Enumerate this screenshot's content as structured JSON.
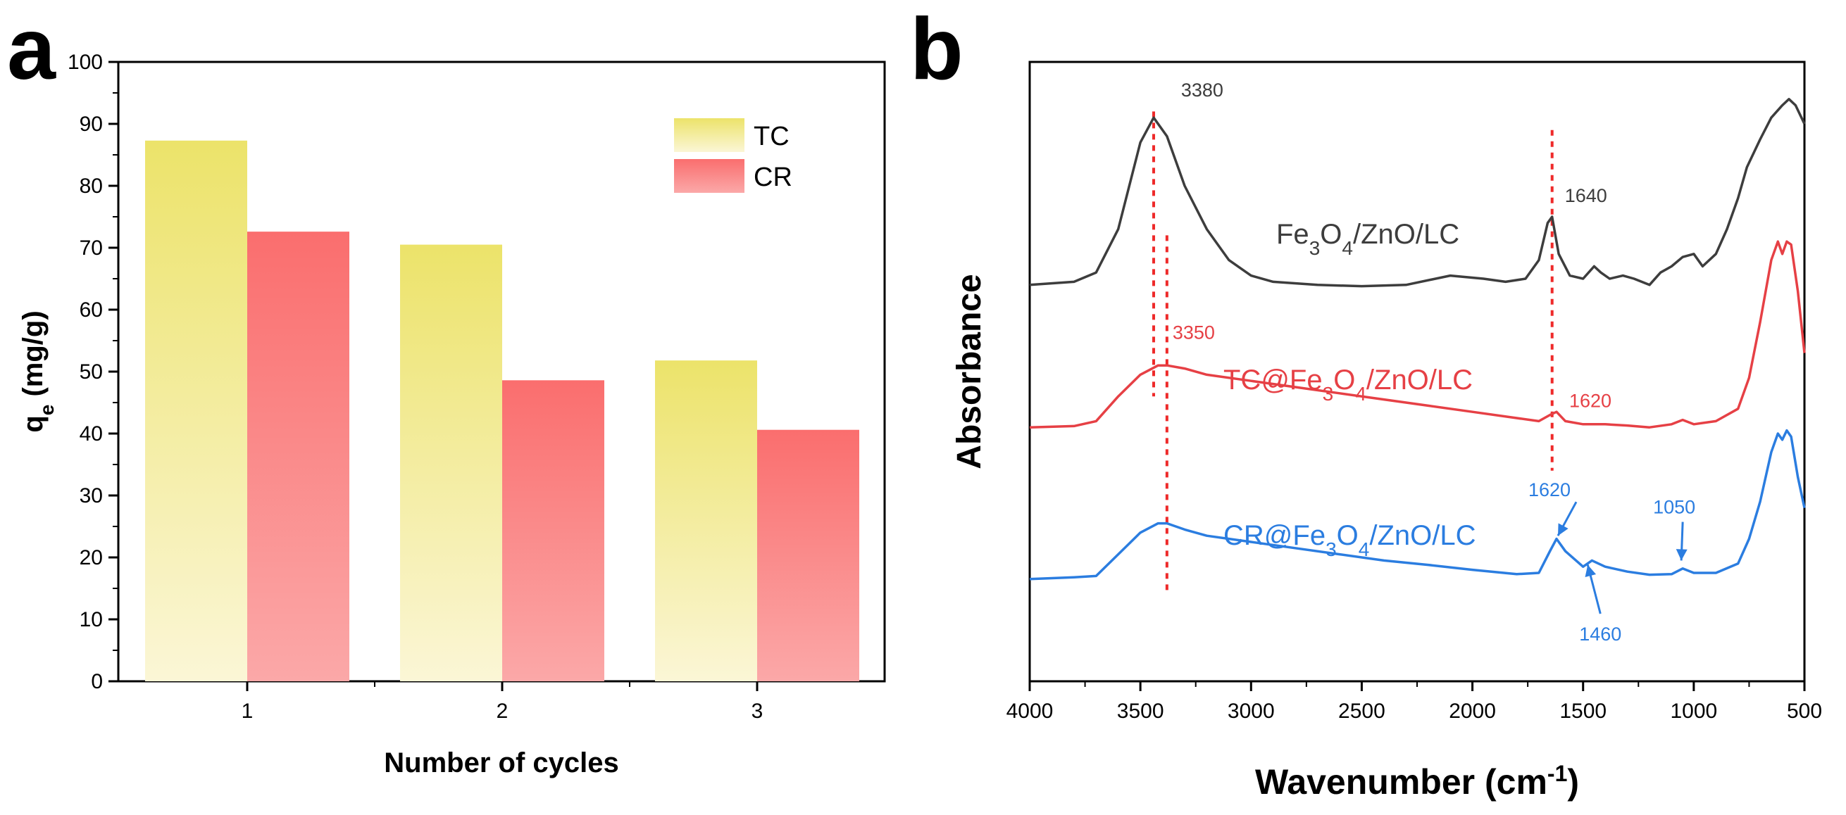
{
  "chart_data": [
    {
      "panel": "a",
      "type": "bar",
      "xlabel": "Number of cycles",
      "ylabel_main": "q",
      "ylabel_sub": "e",
      "ylabel_unit": " (mg/g)",
      "ylim": [
        0,
        100
      ],
      "yticks": [
        0,
        10,
        20,
        30,
        40,
        50,
        60,
        70,
        80,
        90,
        100
      ],
      "categories": [
        "1",
        "2",
        "3"
      ],
      "series": [
        {
          "name": "TC",
          "values": [
            87.3,
            70.5,
            51.8
          ],
          "color_top": "#ece36a",
          "color_bottom": "#fbf6d6"
        },
        {
          "name": "CR",
          "values": [
            72.6,
            48.6,
            40.6
          ],
          "color_top": "#fa6e6e",
          "color_bottom": "#fba8a8"
        }
      ],
      "legend": "top-right"
    },
    {
      "panel": "b",
      "type": "line",
      "xlabel_main": "Wavenumber (cm",
      "xlabel_sup": "-1",
      "xlabel_end": ")",
      "ylabel": "Absorbance",
      "xlim": [
        4000,
        500
      ],
      "xticks": [
        4000,
        3500,
        3000,
        2500,
        2000,
        1500,
        1000,
        500
      ],
      "ylim": [
        0,
        10
      ],
      "series": [
        {
          "name": "Fe3O4/ZnO/LC",
          "label_parts": [
            "Fe",
            "3",
            "O",
            "4",
            "/ZnO/LC"
          ],
          "color": "#3d3d3d",
          "points": [
            [
              4000,
              6.4
            ],
            [
              3800,
              6.45
            ],
            [
              3700,
              6.6
            ],
            [
              3600,
              7.3
            ],
            [
              3500,
              8.7
            ],
            [
              3440,
              9.1
            ],
            [
              3380,
              8.8
            ],
            [
              3300,
              8.0
            ],
            [
              3200,
              7.3
            ],
            [
              3100,
              6.8
            ],
            [
              3000,
              6.55
            ],
            [
              2900,
              6.45
            ],
            [
              2700,
              6.4
            ],
            [
              2500,
              6.38
            ],
            [
              2300,
              6.4
            ],
            [
              2100,
              6.55
            ],
            [
              1950,
              6.5
            ],
            [
              1850,
              6.45
            ],
            [
              1760,
              6.5
            ],
            [
              1700,
              6.8
            ],
            [
              1660,
              7.4
            ],
            [
              1640,
              7.5
            ],
            [
              1610,
              6.9
            ],
            [
              1560,
              6.55
            ],
            [
              1500,
              6.5
            ],
            [
              1450,
              6.7
            ],
            [
              1420,
              6.6
            ],
            [
              1380,
              6.5
            ],
            [
              1320,
              6.55
            ],
            [
              1270,
              6.5
            ],
            [
              1200,
              6.4
            ],
            [
              1150,
              6.6
            ],
            [
              1100,
              6.7
            ],
            [
              1050,
              6.85
            ],
            [
              1000,
              6.9
            ],
            [
              960,
              6.7
            ],
            [
              900,
              6.9
            ],
            [
              850,
              7.3
            ],
            [
              800,
              7.8
            ],
            [
              760,
              8.3
            ],
            [
              700,
              8.75
            ],
            [
              650,
              9.1
            ],
            [
              600,
              9.3
            ],
            [
              570,
              9.4
            ],
            [
              540,
              9.3
            ],
            [
              500,
              9.0
            ]
          ]
        },
        {
          "name": "TC@Fe3O4/ZnO/LC",
          "label_parts": [
            "TC@Fe",
            "3",
            "O",
            "4",
            "/ZnO/LC"
          ],
          "color": "#e64045",
          "points": [
            [
              4000,
              4.1
            ],
            [
              3800,
              4.12
            ],
            [
              3700,
              4.2
            ],
            [
              3600,
              4.6
            ],
            [
              3500,
              4.95
            ],
            [
              3420,
              5.1
            ],
            [
              3380,
              5.1
            ],
            [
              3300,
              5.05
            ],
            [
              3200,
              4.95
            ],
            [
              3000,
              4.85
            ],
            [
              2800,
              4.75
            ],
            [
              2600,
              4.65
            ],
            [
              2400,
              4.55
            ],
            [
              2200,
              4.45
            ],
            [
              2000,
              4.35
            ],
            [
              1800,
              4.25
            ],
            [
              1700,
              4.2
            ],
            [
              1650,
              4.3
            ],
            [
              1620,
              4.35
            ],
            [
              1580,
              4.2
            ],
            [
              1500,
              4.15
            ],
            [
              1400,
              4.15
            ],
            [
              1300,
              4.13
            ],
            [
              1200,
              4.1
            ],
            [
              1100,
              4.15
            ],
            [
              1050,
              4.22
            ],
            [
              1000,
              4.15
            ],
            [
              900,
              4.2
            ],
            [
              800,
              4.4
            ],
            [
              750,
              4.9
            ],
            [
              700,
              5.8
            ],
            [
              650,
              6.8
            ],
            [
              620,
              7.1
            ],
            [
              600,
              6.9
            ],
            [
              580,
              7.1
            ],
            [
              560,
              7.05
            ],
            [
              530,
              6.3
            ],
            [
              500,
              5.3
            ]
          ]
        },
        {
          "name": "CR@Fe3O4/ZnO/LC",
          "label_parts": [
            "CR@Fe",
            "3",
            "O",
            "4",
            "/ZnO/LC"
          ],
          "color": "#2b7de0",
          "points": [
            [
              4000,
              1.65
            ],
            [
              3800,
              1.68
            ],
            [
              3700,
              1.7
            ],
            [
              3600,
              2.05
            ],
            [
              3500,
              2.4
            ],
            [
              3420,
              2.55
            ],
            [
              3380,
              2.55
            ],
            [
              3300,
              2.45
            ],
            [
              3200,
              2.35
            ],
            [
              3000,
              2.25
            ],
            [
              2800,
              2.15
            ],
            [
              2600,
              2.05
            ],
            [
              2400,
              1.95
            ],
            [
              2200,
              1.88
            ],
            [
              2000,
              1.8
            ],
            [
              1800,
              1.73
            ],
            [
              1700,
              1.75
            ],
            [
              1650,
              2.1
            ],
            [
              1620,
              2.3
            ],
            [
              1580,
              2.1
            ],
            [
              1500,
              1.85
            ],
            [
              1460,
              1.95
            ],
            [
              1400,
              1.85
            ],
            [
              1300,
              1.77
            ],
            [
              1200,
              1.72
            ],
            [
              1100,
              1.73
            ],
            [
              1050,
              1.82
            ],
            [
              1000,
              1.75
            ],
            [
              900,
              1.75
            ],
            [
              800,
              1.9
            ],
            [
              750,
              2.3
            ],
            [
              700,
              2.9
            ],
            [
              650,
              3.7
            ],
            [
              620,
              4.0
            ],
            [
              600,
              3.9
            ],
            [
              580,
              4.05
            ],
            [
              560,
              3.95
            ],
            [
              530,
              3.3
            ],
            [
              500,
              2.8
            ]
          ]
        }
      ],
      "guide_lines": [
        {
          "x": 3440,
          "from": 4.6,
          "to": 9.2
        },
        {
          "x": 3380,
          "from": 1.4,
          "to": 7.2
        },
        {
          "x": 1640,
          "from": 3.4,
          "to": 8.9
        }
      ],
      "peak_labels": [
        {
          "text": "3380",
          "x": 3380,
          "y": 9.35,
          "series": 0
        },
        {
          "text": "1640",
          "x": 1640,
          "y": 7.6,
          "series": 0
        },
        {
          "text": "3350",
          "x": 3380,
          "y": 5.3,
          "series": 1
        },
        {
          "text": "1620",
          "x": 1620,
          "y": 4.45,
          "series": 1
        },
        {
          "text": "1620",
          "x": 1620,
          "y": 2.85,
          "series": 2,
          "arrow": true
        },
        {
          "text": "1050",
          "x": 1050,
          "y": 2.55,
          "series": 2,
          "arrow": true
        },
        {
          "text": "1460",
          "x": 1460,
          "y": 1.0,
          "series": 2,
          "arrow": true
        }
      ]
    }
  ],
  "panel_letters": [
    "a",
    "b"
  ]
}
